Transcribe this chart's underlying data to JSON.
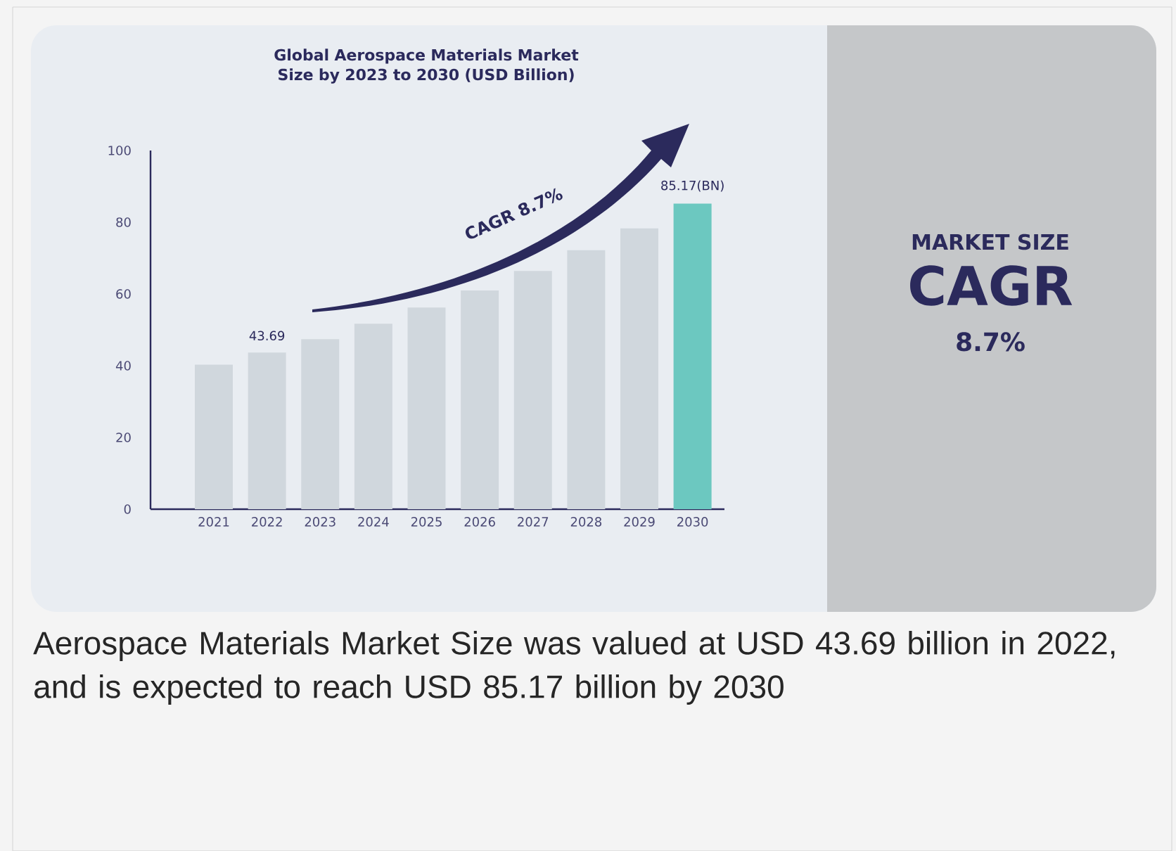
{
  "chart_data": {
    "type": "bar",
    "title": "Global Aerospace Materials Market Size by 2023 to 2030 (USD Billion)",
    "categories": [
      "2021",
      "2022",
      "2023",
      "2024",
      "2025",
      "2026",
      "2027",
      "2028",
      "2029",
      "2030"
    ],
    "values": [
      40.3,
      43.69,
      47.4,
      51.7,
      56.2,
      61.0,
      66.4,
      72.2,
      78.3,
      85.17
    ],
    "colors": [
      "#d0d7dd",
      "#d0d7dd",
      "#d0d7dd",
      "#d0d7dd",
      "#d0d7dd",
      "#d0d7dd",
      "#d0d7dd",
      "#d0d7dd",
      "#d0d7dd",
      "#6cc8c0"
    ],
    "value_labels": [
      null,
      "43.69",
      null,
      null,
      null,
      null,
      null,
      null,
      null,
      "85.17(BN)"
    ],
    "ylim": [
      0,
      100
    ],
    "yticks": [
      0,
      20,
      40,
      60,
      80,
      100
    ],
    "annotations": [
      "CAGR 8.7%",
      "MARKET SIZE",
      "CAGR",
      "8.7%",
      "Aerospace Materials Market Size was valued at USD 43.69 billion in 2022, and is expected to reach USD 85.17 billion by 2030"
    ]
  }
}
